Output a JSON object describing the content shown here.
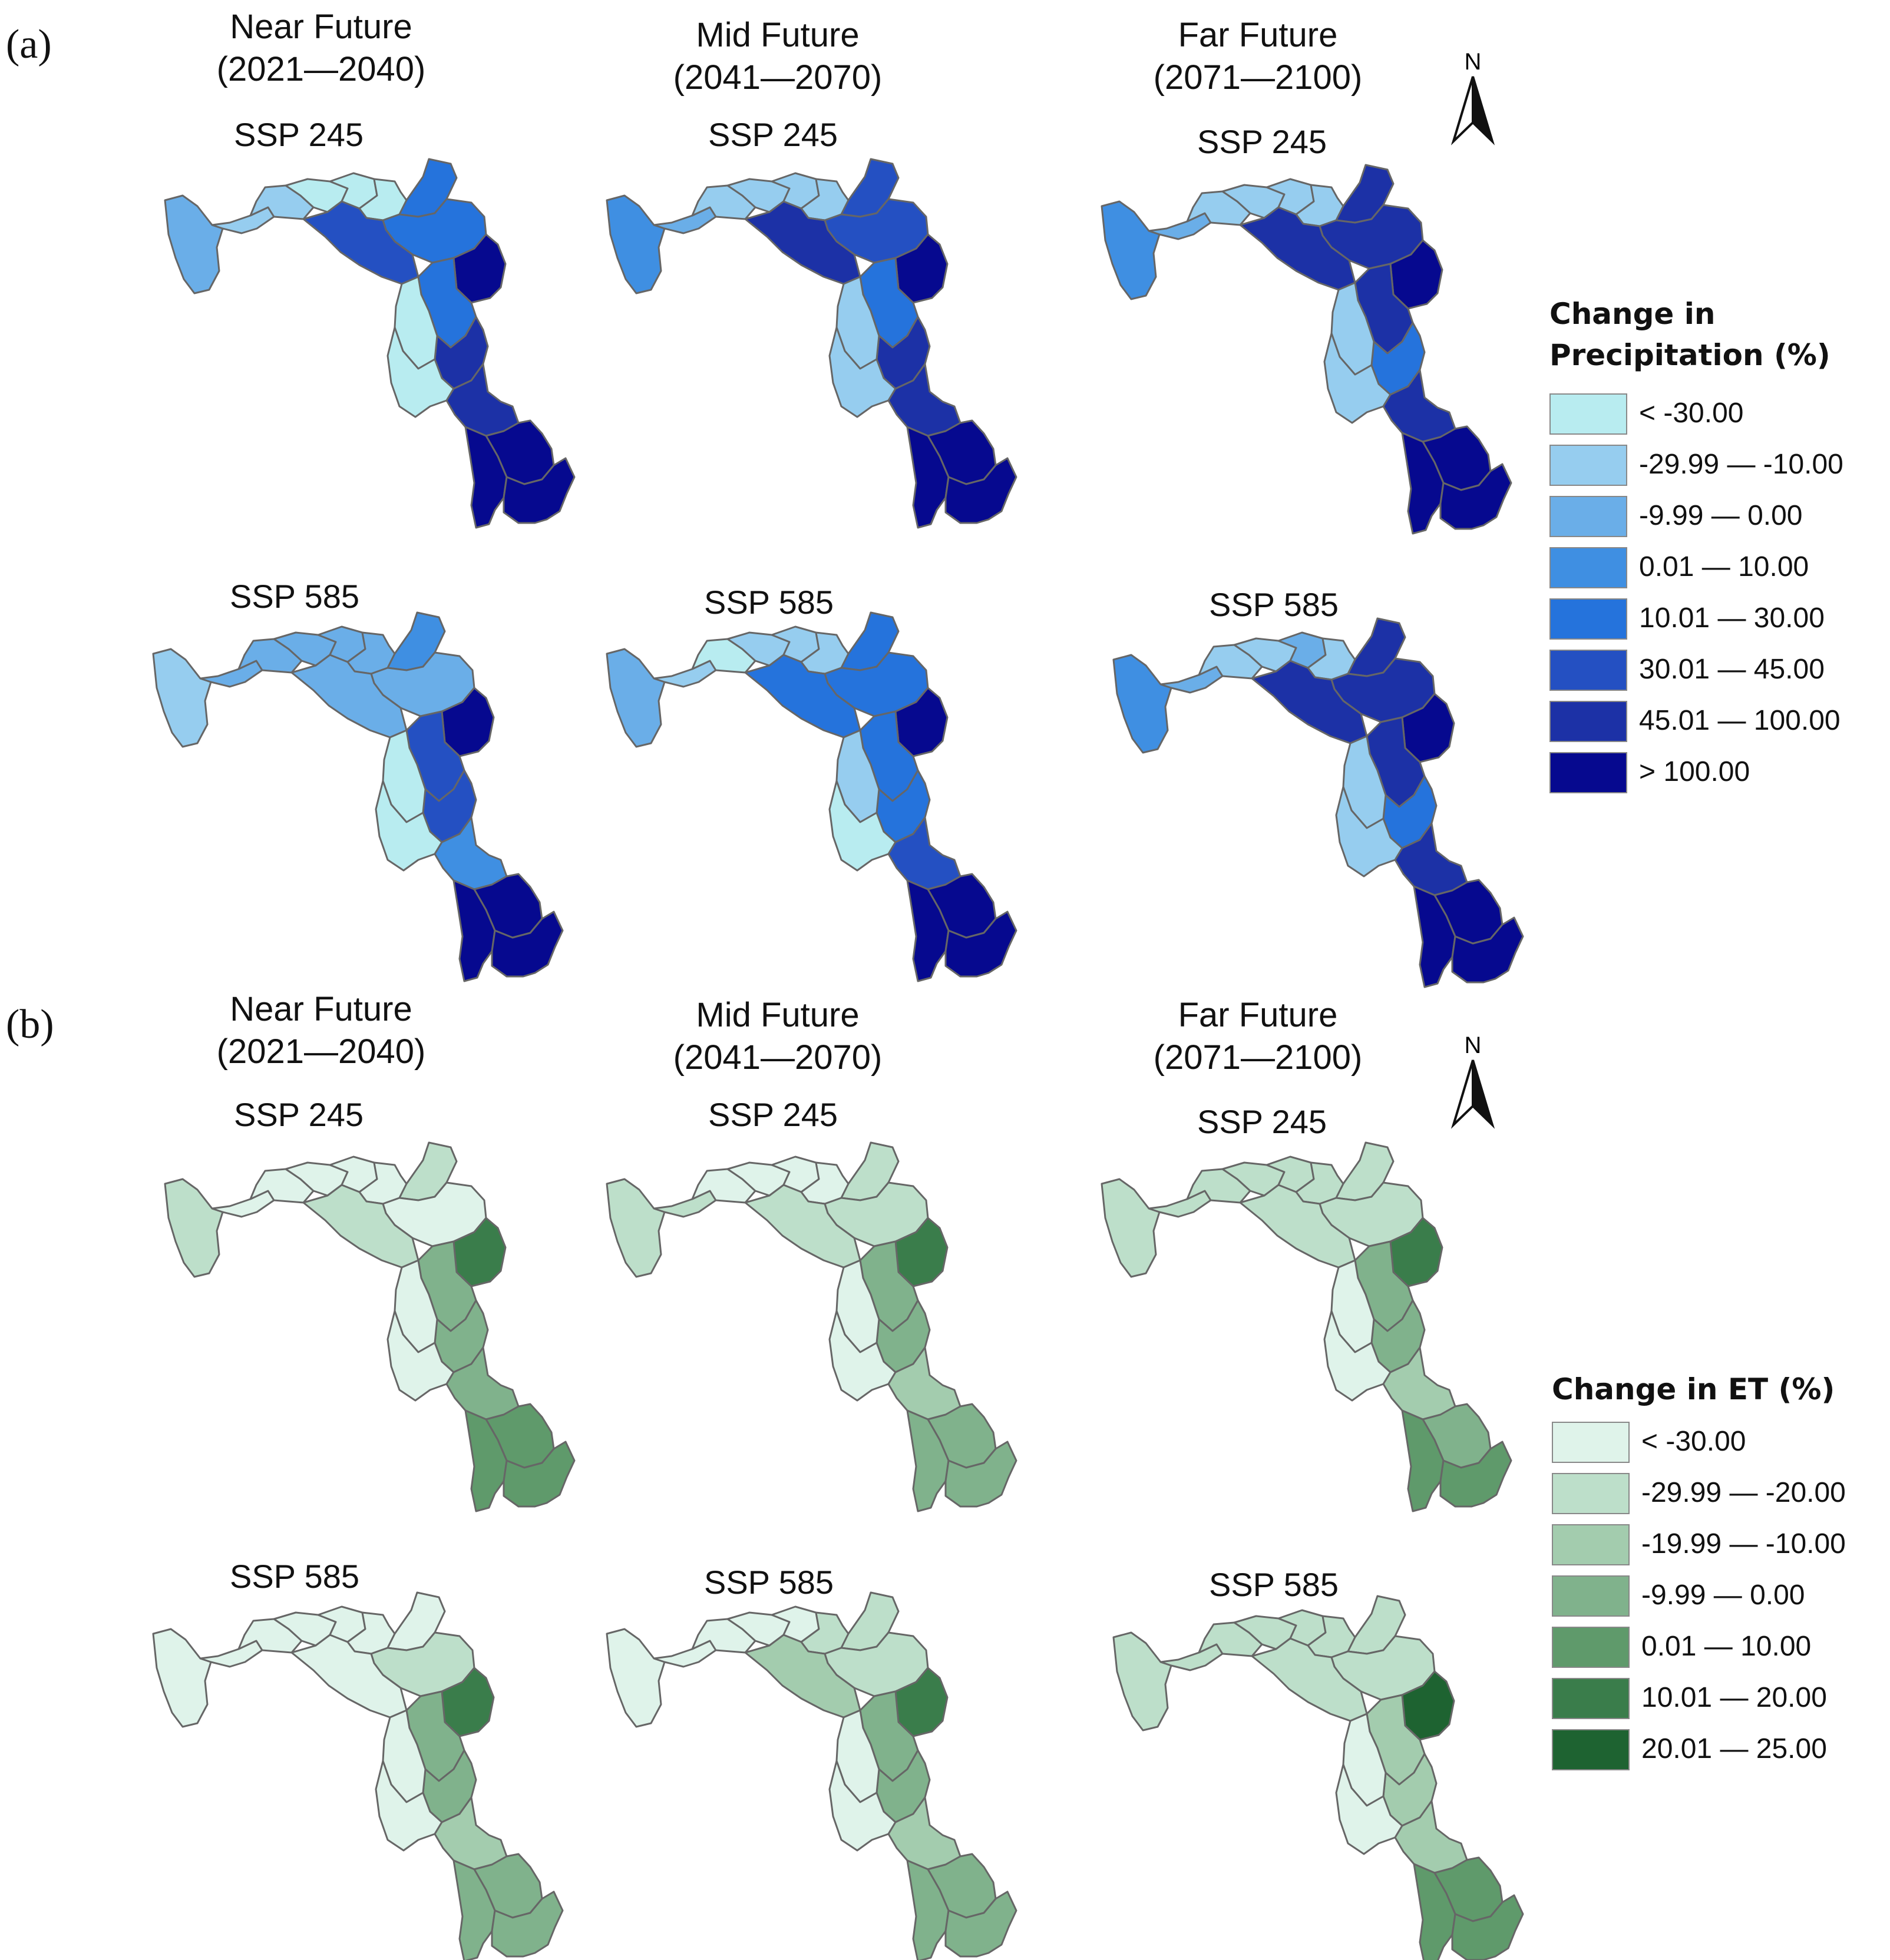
{
  "periods": [
    {
      "name": "Near Future",
      "years": "(2021—2040)"
    },
    {
      "name": "Mid Future",
      "years": "(2041—2070)"
    },
    {
      "name": "Far Future",
      "years": "(2071—2100)"
    }
  ],
  "scenarios": [
    "SSP 245",
    "SSP 585"
  ],
  "north_label": "N",
  "panel_a": {
    "label": "(a)",
    "legend_title_line1": "Change in",
    "legend_title_line2": "Precipitation (%)",
    "legend": [
      {
        "label": "< -30.00",
        "color": "#b8ecf0"
      },
      {
        "label": "-29.99 — -10.00",
        "color": "#96cdef"
      },
      {
        "label": "-9.99 — 0.00",
        "color": "#6aaee8"
      },
      {
        "label": "0.01 — 10.00",
        "color": "#3f8fe2"
      },
      {
        "label": "10.01 — 30.00",
        "color": "#2573dc"
      },
      {
        "label": "30.01 — 45.00",
        "color": "#2450c2"
      },
      {
        "label": "45.01 — 100.00",
        "color": "#1c31a6"
      },
      {
        "label": "> 100.00",
        "color": "#06098f"
      }
    ],
    "maps": [
      {
        "period": "Near Future",
        "scenario": "SSP 245",
        "regions": [
          2,
          1,
          1,
          0,
          0,
          0,
          4,
          4,
          5,
          7,
          4,
          6,
          0,
          0,
          6,
          7,
          7,
          7
        ]
      },
      {
        "period": "Mid Future",
        "scenario": "SSP 245",
        "regions": [
          3,
          2,
          1,
          1,
          1,
          1,
          5,
          5,
          6,
          7,
          4,
          6,
          1,
          1,
          6,
          7,
          7,
          7
        ]
      },
      {
        "period": "Far Future",
        "scenario": "SSP 245",
        "regions": [
          3,
          2,
          1,
          1,
          1,
          1,
          6,
          6,
          6,
          7,
          6,
          4,
          1,
          1,
          6,
          7,
          7,
          7
        ]
      },
      {
        "period": "Near Future",
        "scenario": "SSP 585",
        "regions": [
          1,
          2,
          2,
          2,
          2,
          2,
          3,
          2,
          2,
          7,
          5,
          5,
          0,
          0,
          3,
          7,
          7,
          7
        ]
      },
      {
        "period": "Mid Future",
        "scenario": "SSP 585",
        "regions": [
          2,
          1,
          0,
          1,
          1,
          1,
          4,
          4,
          4,
          7,
          4,
          4,
          1,
          0,
          5,
          7,
          7,
          7
        ]
      },
      {
        "period": "Far Future",
        "scenario": "SSP 585",
        "regions": [
          3,
          2,
          1,
          1,
          2,
          1,
          6,
          6,
          6,
          7,
          6,
          4,
          1,
          1,
          6,
          7,
          7,
          7
        ]
      }
    ]
  },
  "panel_b": {
    "label": "(b)",
    "legend_title": "Change in ET (%)",
    "legend": [
      {
        "label": "< -30.00",
        "color": "#dff3ea"
      },
      {
        "label": "-29.99 — -20.00",
        "color": "#bddfca"
      },
      {
        "label": "-19.99 — -10.00",
        "color": "#a3ccae"
      },
      {
        "label": "-9.99 —  0.00",
        "color": "#80b28c"
      },
      {
        "label": "0.01 — 10.00",
        "color": "#5f9a6b"
      },
      {
        "label": "10.01 — 20.00",
        "color": "#3a7d4b"
      },
      {
        "label": "20.01 — 25.00",
        "color": "#1e6331"
      }
    ],
    "maps": [
      {
        "period": "Near Future",
        "scenario": "SSP 245",
        "regions": [
          1,
          0,
          0,
          0,
          0,
          0,
          1,
          0,
          1,
          5,
          3,
          3,
          0,
          0,
          3,
          4,
          4,
          4
        ]
      },
      {
        "period": "Mid Future",
        "scenario": "SSP 245",
        "regions": [
          1,
          1,
          0,
          0,
          0,
          0,
          1,
          1,
          1,
          5,
          3,
          3,
          0,
          0,
          2,
          3,
          3,
          3
        ]
      },
      {
        "period": "Far Future",
        "scenario": "SSP 245",
        "regions": [
          1,
          1,
          1,
          1,
          1,
          1,
          1,
          1,
          1,
          5,
          3,
          3,
          0,
          0,
          2,
          3,
          4,
          4
        ]
      },
      {
        "period": "Near Future",
        "scenario": "SSP 585",
        "regions": [
          0,
          0,
          0,
          0,
          0,
          0,
          0,
          1,
          0,
          5,
          3,
          3,
          0,
          0,
          2,
          3,
          3,
          3
        ]
      },
      {
        "period": "Mid Future",
        "scenario": "SSP 585",
        "regions": [
          0,
          0,
          0,
          0,
          0,
          1,
          1,
          1,
          2,
          5,
          3,
          3,
          0,
          0,
          2,
          3,
          3,
          3
        ]
      },
      {
        "period": "Far Future",
        "scenario": "SSP 585",
        "regions": [
          1,
          1,
          1,
          1,
          1,
          1,
          1,
          1,
          1,
          6,
          2,
          2,
          0,
          0,
          2,
          4,
          4,
          4
        ]
      }
    ]
  }
}
